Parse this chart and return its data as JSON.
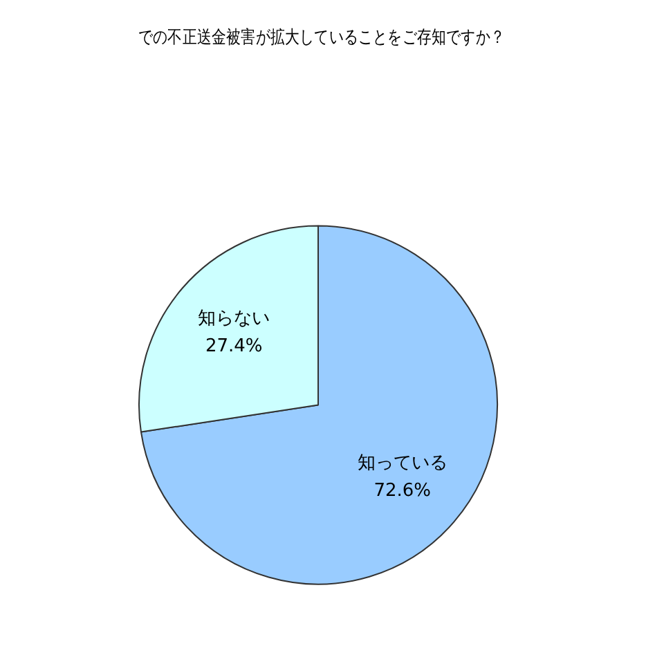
{
  "chart_data": {
    "type": "pie",
    "title": "での不正送金被害が拡大していることをご存知ですか？",
    "categories": [
      "知っている",
      "知らない"
    ],
    "values": [
      72.6,
      27.4
    ],
    "colors": [
      "#99ccff",
      "#ccffff"
    ],
    "value_labels": [
      "72.6%",
      "27.4%"
    ],
    "legend": false
  }
}
